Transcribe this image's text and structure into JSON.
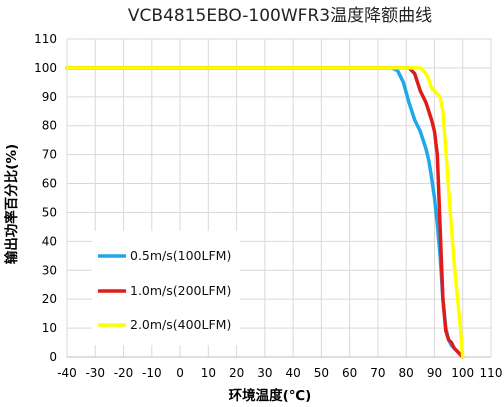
{
  "chart_data": {
    "type": "line",
    "title": "VCB4815EBO-100WFR3温度降额曲线",
    "xlabel": "环境温度(℃)",
    "ylabel": "输出功率百分比(%)",
    "xlim": [
      -40,
      110
    ],
    "ylim": [
      0,
      110
    ],
    "xticks": [
      -40,
      -30,
      -20,
      -10,
      0,
      10,
      20,
      30,
      40,
      50,
      60,
      70,
      80,
      90,
      100,
      110
    ],
    "yticks": [
      0,
      10,
      20,
      30,
      40,
      50,
      60,
      70,
      80,
      90,
      100,
      110
    ],
    "grid": true,
    "legend_position": "bottom-left",
    "series": [
      {
        "name": "0.5m/s(100LFM)",
        "color": "#1fa9e8",
        "x": [
          -40,
          70,
          73,
          75,
          77,
          79,
          81,
          83,
          85,
          87,
          88,
          89,
          90,
          91,
          92,
          93,
          94,
          95,
          96,
          97,
          98,
          99,
          100
        ],
        "y": [
          100,
          100,
          100,
          100,
          99,
          95,
          88,
          82,
          78,
          72,
          68,
          62,
          55,
          46,
          35,
          20,
          10,
          6,
          4,
          3,
          2,
          1,
          0
        ]
      },
      {
        "name": "1.0m/s(200LFM)",
        "color": "#e01b1b",
        "x": [
          -40,
          76,
          78,
          80,
          81,
          82,
          83,
          84,
          85,
          86,
          87,
          88,
          89,
          90,
          91,
          92,
          93,
          94,
          95,
          96,
          97,
          98,
          100
        ],
        "y": [
          100,
          100,
          100,
          100,
          100,
          99,
          98,
          95,
          92,
          90,
          88,
          85,
          82,
          78,
          70,
          45,
          20,
          9,
          6,
          5,
          3,
          2,
          0
        ]
      },
      {
        "name": "2.0m/s(400LFM)",
        "color": "#ffff00",
        "x": [
          -40,
          80,
          83,
          85,
          86,
          87,
          88,
          89,
          90,
          91,
          92,
          93,
          94,
          95,
          96,
          97,
          98,
          99,
          100
        ],
        "y": [
          100,
          100,
          100,
          100,
          99,
          98,
          96,
          93,
          92,
          91,
          90,
          85,
          72,
          58,
          45,
          32,
          22,
          12,
          0
        ]
      }
    ]
  }
}
